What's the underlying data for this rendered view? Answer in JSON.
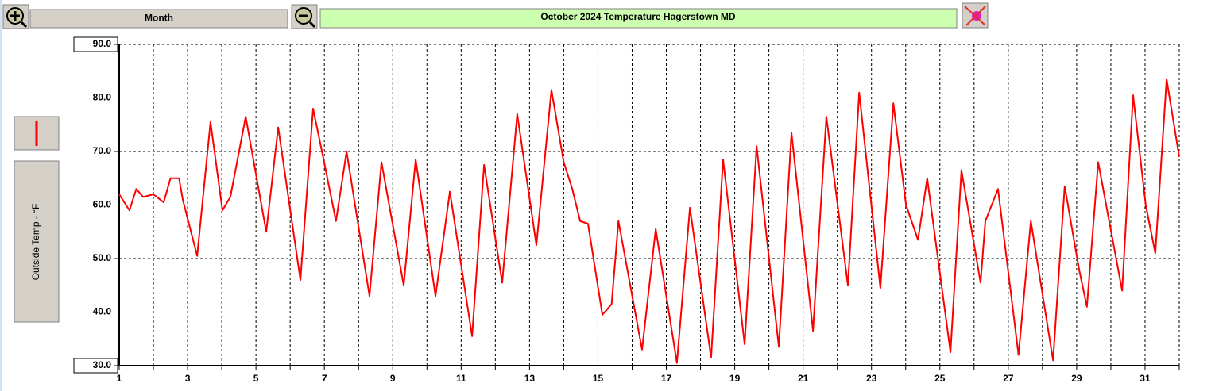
{
  "button_label": "Month",
  "chart_data": {
    "type": "line",
    "title": "October  2024  Temperature     Hagerstown MD",
    "ylabel": "Outside Temp - °F",
    "x": [
      1.0,
      1.3,
      1.5,
      1.7,
      2.0,
      2.3,
      2.5,
      2.75,
      2.86,
      3.28,
      3.67,
      4.02,
      4.25,
      4.7,
      5.3,
      5.65,
      6.3,
      6.67,
      6.93,
      7.34,
      7.65,
      8.32,
      8.67,
      9.32,
      9.67,
      10.25,
      10.67,
      11.32,
      11.67,
      12.2,
      12.64,
      13.2,
      13.64,
      14.0,
      14.25,
      14.48,
      14.71,
      15.13,
      15.4,
      15.6,
      16.29,
      16.69,
      17.31,
      17.69,
      18.31,
      18.66,
      19.29,
      19.64,
      20.29,
      20.66,
      21.29,
      21.68,
      22.31,
      22.64,
      23.26,
      23.64,
      24.01,
      24.36,
      24.63,
      25.31,
      25.63,
      26.19,
      26.33,
      26.7,
      27.3,
      27.66,
      28.31,
      28.65,
      29.07,
      29.3,
      29.63,
      30.33,
      30.65,
      31.02,
      31.3,
      31.63,
      32.0
    ],
    "series": [
      {
        "color": "#ff0000",
        "values": [
          62,
          59,
          63,
          61.5,
          62,
          60.5,
          65,
          65,
          61,
          50.5,
          75.5,
          59,
          61.5,
          76.5,
          55,
          74.5,
          46,
          78,
          70,
          57,
          70,
          43,
          68,
          45,
          68.5,
          43,
          62.5,
          35.5,
          67.5,
          45.5,
          77,
          52.5,
          81.5,
          68,
          63,
          57,
          56.5,
          39.5,
          41.5,
          57,
          33,
          55.5,
          30.5,
          59.5,
          31.5,
          68.5,
          34,
          71,
          33.5,
          73.5,
          36.5,
          76.5,
          45,
          81,
          44.5,
          79,
          60,
          53.5,
          65,
          32.5,
          66.5,
          45.5,
          57,
          63,
          32,
          57,
          31,
          63.5,
          48,
          41,
          68,
          44,
          80.5,
          60,
          51,
          83.5,
          69
        ]
      }
    ],
    "xlim": [
      1,
      32
    ],
    "xticks": [
      1,
      3,
      5,
      7,
      9,
      11,
      13,
      15,
      17,
      19,
      21,
      23,
      25,
      27,
      29,
      31
    ],
    "minor_xticks": [
      2,
      4,
      6,
      8,
      10,
      12,
      14,
      16,
      18,
      20,
      22,
      24,
      26,
      28,
      30,
      32
    ],
    "ylim": [
      30,
      90
    ],
    "yticks": [
      {
        "value": 30,
        "label": "30.0"
      },
      {
        "value": 40,
        "label": "40.0"
      },
      {
        "value": 50,
        "label": "50.0"
      },
      {
        "value": 60,
        "label": "60.0"
      },
      {
        "value": 70,
        "label": "70.0"
      },
      {
        "value": 80,
        "label": "80.0"
      },
      {
        "value": 90,
        "label": "90.0"
      }
    ],
    "grid": true
  }
}
